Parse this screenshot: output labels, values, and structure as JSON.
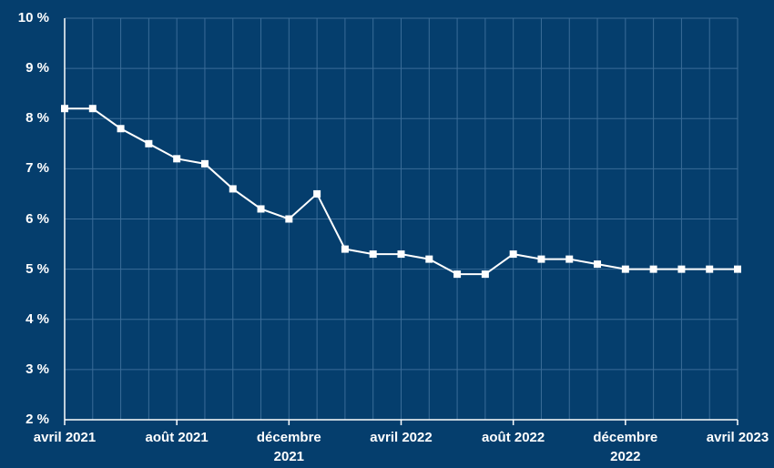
{
  "chart_data": {
    "type": "line",
    "categories": [
      "avril 2021",
      null,
      null,
      null,
      "août 2021",
      null,
      null,
      null,
      "décembre 2021",
      null,
      null,
      null,
      "avril 2022",
      null,
      null,
      null,
      "août 2022",
      null,
      null,
      null,
      "décembre 2022",
      null,
      null,
      null,
      "avril 2023"
    ],
    "series": [
      {
        "color": "#ffffff",
        "values": [
          8.2,
          8.2,
          7.8,
          7.5,
          7.2,
          7.1,
          6.6,
          6.2,
          6.0,
          6.5,
          5.4,
          5.3,
          5.3,
          5.2,
          4.9,
          4.9,
          5.3,
          5.2,
          5.2,
          5.1,
          5.0,
          5.0,
          5.0,
          5.0,
          5.0
        ]
      }
    ],
    "ylim": [
      2,
      10
    ],
    "yticks": [
      {
        "value": 2,
        "label": "2 %"
      },
      {
        "value": 3,
        "label": "3 %"
      },
      {
        "value": 4,
        "label": "4 %"
      },
      {
        "value": 5,
        "label": "5 %"
      },
      {
        "value": 6,
        "label": "6 %"
      },
      {
        "value": 7,
        "label": "7 %"
      },
      {
        "value": 8,
        "label": "8 %"
      },
      {
        "value": 9,
        "label": "9 %"
      },
      {
        "value": 10,
        "label": "10 %"
      }
    ],
    "grid": true
  }
}
